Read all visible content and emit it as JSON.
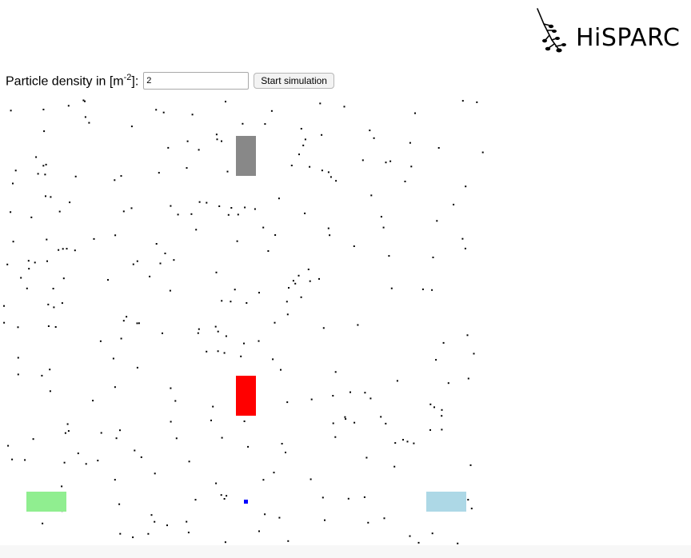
{
  "logo": {
    "text": "HiSPARC",
    "icon": "hisparc-tree-icon"
  },
  "controls": {
    "label_prefix": "Particle density in [m",
    "label_exponent": "-2",
    "label_suffix": "]:",
    "density_value": "2",
    "start_label": "Start simulation"
  },
  "colors": {
    "detector_top": "#888888",
    "detector_middle": "#ff0000",
    "detector_left": "#90ee90",
    "detector_right": "#add8e6",
    "shower_core": "#0000ff",
    "particle": "#000000"
  },
  "simulation": {
    "detectors": [
      "detector-top",
      "detector-middle",
      "detector-bottom-left",
      "detector-bottom-right"
    ],
    "shower_core": "shower-core"
  }
}
